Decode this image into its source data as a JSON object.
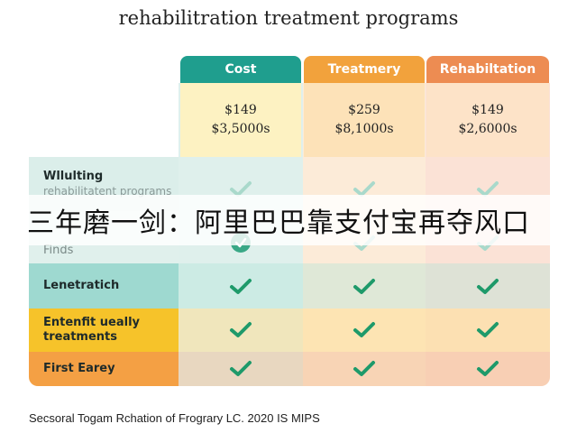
{
  "title": "rehabilitration treatment programs",
  "columns": [
    {
      "label": "Cost",
      "color": "#1f9e8e",
      "prices": [
        "$149",
        "$3,5000s"
      ]
    },
    {
      "label": "Treatmery",
      "color": "#f2a23c",
      "prices": [
        "$259",
        "$8,1000s"
      ]
    },
    {
      "label": "Rehabiltation",
      "color": "#ed8c52",
      "prices": [
        "$149",
        "$2,6000s"
      ]
    }
  ],
  "rows": [
    {
      "label": "Wllulting",
      "sub": "rehabilitatent programs"
    },
    {
      "label": "Finds",
      "sub": ""
    },
    {
      "label": "Lenetratich",
      "sub": ""
    },
    {
      "label": "Entenfit ueally treatments",
      "sub": ""
    },
    {
      "label": "First Earey",
      "sub": ""
    }
  ],
  "overlay_text": "三年磨一剑：阿里巴巴靠支付宝再夺风口",
  "footer": "Secsoral Togam Rchation of Frograry LC. 2020 IS MIPS",
  "icons": {
    "check": "check-icon"
  }
}
